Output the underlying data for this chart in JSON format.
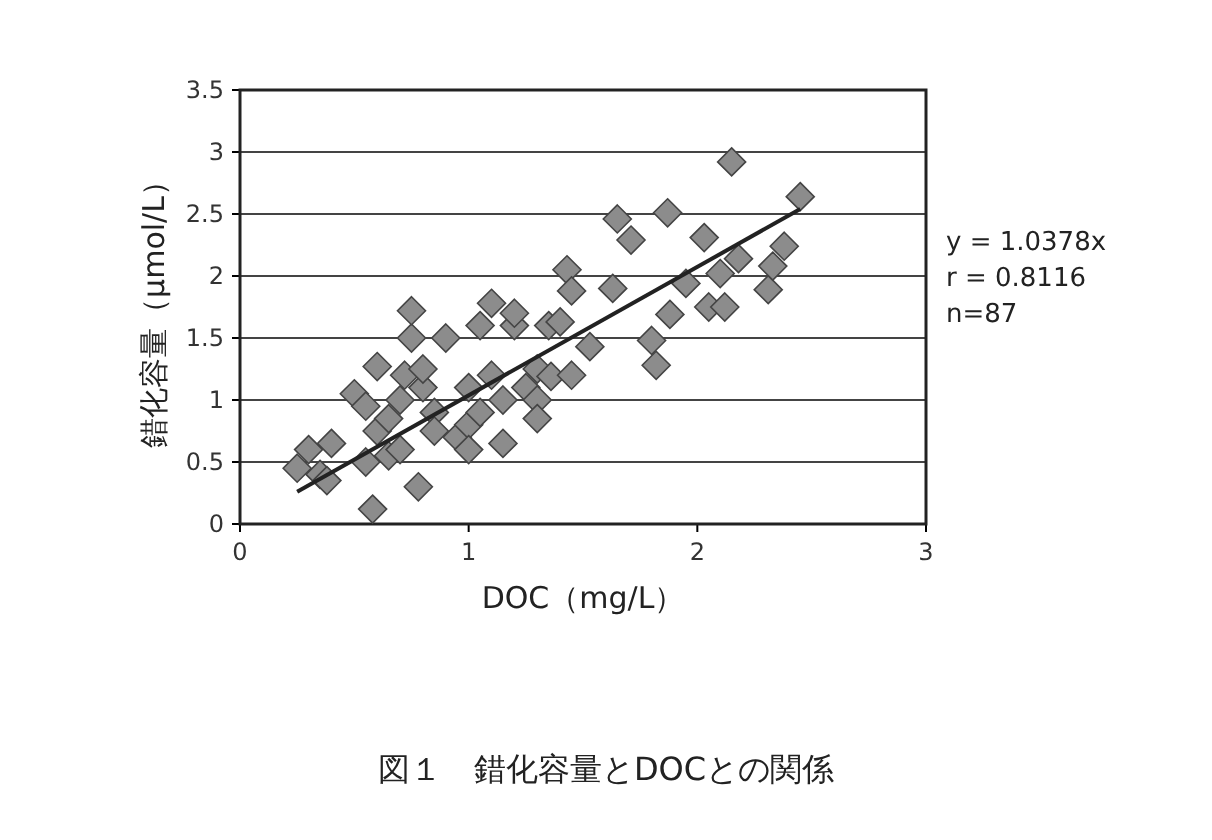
{
  "chart_data": {
    "type": "scatter",
    "title": "図１　錯化容量とDOCとの関係",
    "xlabel": "DOC（mg/L）",
    "ylabel": "錯化容量（μmol/L）",
    "xlim": [
      0,
      3
    ],
    "xticks": [
      0,
      1,
      2,
      3
    ],
    "ylim": [
      0,
      3.5
    ],
    "yticks": [
      0,
      {
        "value": 0.5,
        "label": "0.5"
      },
      1,
      {
        "value": 1.5,
        "label": "1.5"
      },
      2,
      {
        "value": 2.5,
        "label": "2.5"
      },
      3,
      {
        "value": 3.5,
        "label": "3.5"
      }
    ],
    "grid": "y",
    "annotations": [
      "y = 1.0378x",
      "r = 0.8116",
      "n=87"
    ],
    "series": [
      {
        "marker": "diamond",
        "color": "#8c8c8c",
        "x": [
          0.25,
          0.3,
          0.35,
          0.4,
          0.38,
          0.5,
          0.55,
          0.55,
          0.58,
          0.6,
          0.6,
          0.65,
          0.65,
          0.7,
          0.7,
          0.72,
          0.75,
          0.75,
          0.78,
          0.8,
          0.8,
          0.85,
          0.85,
          0.9,
          0.95,
          1.0,
          1.0,
          1.0,
          1.05,
          1.05,
          1.1,
          1.1,
          1.15,
          1.15,
          1.2,
          1.2,
          1.25,
          1.3,
          1.3,
          1.3,
          1.35,
          1.36,
          1.4,
          1.43,
          1.45,
          1.45,
          1.53,
          1.63,
          1.65,
          1.71,
          1.8,
          1.82,
          1.87,
          1.88,
          1.95,
          2.03,
          2.05,
          2.1,
          2.12,
          2.15,
          2.18,
          2.31,
          2.33,
          2.38,
          2.45
        ],
        "values": [
          0.45,
          0.6,
          0.4,
          0.65,
          0.35,
          1.05,
          0.5,
          0.95,
          0.12,
          0.75,
          1.27,
          0.85,
          0.55,
          1.0,
          0.6,
          1.2,
          1.5,
          1.72,
          0.3,
          1.1,
          1.25,
          0.9,
          0.75,
          1.5,
          0.7,
          1.1,
          0.8,
          0.6,
          1.6,
          0.9,
          1.2,
          1.78,
          1.0,
          0.65,
          1.6,
          1.7,
          1.1,
          1.0,
          0.85,
          1.25,
          1.6,
          1.19,
          1.63,
          2.05,
          1.88,
          1.2,
          1.43,
          1.9,
          2.46,
          2.29,
          1.48,
          1.28,
          2.51,
          1.69,
          1.94,
          2.31,
          1.75,
          2.02,
          1.75,
          2.92,
          2.14,
          1.89,
          2.08,
          2.24,
          2.64
        ]
      },
      {
        "type": "line",
        "color": "#222222",
        "x": [
          0.25,
          2.45
        ],
        "values": [
          0.26,
          2.54
        ]
      }
    ]
  }
}
